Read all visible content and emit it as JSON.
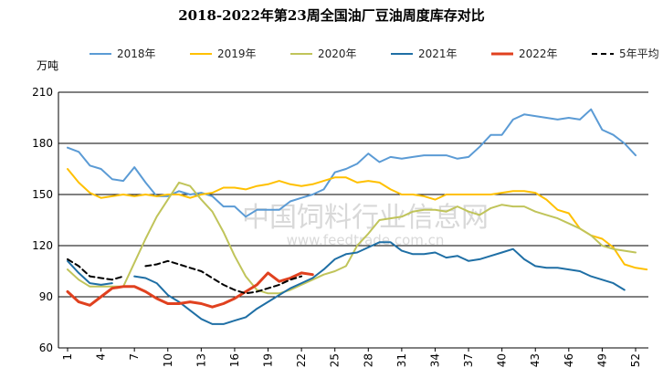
{
  "chart_data": {
    "type": "line",
    "title": "2018-2022年第23周全国油厂豆油周度库存对比",
    "ylabel": "万吨",
    "xlabel": "",
    "ylim": [
      60,
      210
    ],
    "yticks": [
      60,
      90,
      120,
      150,
      180,
      210
    ],
    "xlim": [
      1,
      52
    ],
    "xticks": [
      1,
      4,
      7,
      10,
      13,
      16,
      19,
      22,
      25,
      28,
      31,
      34,
      37,
      40,
      43,
      46,
      49,
      52
    ],
    "grid": "horizontal",
    "legend_position": "top",
    "series": [
      {
        "name": "2018年",
        "color": "#5b9bd5",
        "dash": "",
        "width": 2,
        "values": [
          177.5,
          175,
          167,
          165,
          159,
          158,
          166,
          157,
          149,
          149,
          152,
          150,
          151,
          149,
          143,
          143,
          137,
          141,
          141,
          141,
          146,
          148,
          150,
          153,
          163,
          165,
          168,
          174,
          169,
          172,
          171,
          172,
          173,
          173,
          173,
          171,
          172,
          178,
          185,
          185,
          194,
          197,
          196,
          195,
          194,
          195,
          194,
          200,
          188,
          185,
          180,
          173
        ]
      },
      {
        "name": "2019年",
        "color": "#ffc000",
        "dash": "",
        "width": 2,
        "values": [
          165,
          157,
          151,
          148,
          149,
          150,
          149,
          150,
          149,
          150,
          150,
          148,
          150,
          151,
          154,
          154,
          153,
          155,
          156,
          158,
          156,
          155,
          156,
          158,
          160,
          160,
          157,
          158,
          157,
          153,
          150,
          150,
          149,
          147,
          150,
          150,
          150,
          150,
          150,
          151,
          152,
          152,
          151,
          147,
          141,
          139,
          130,
          126,
          124,
          119,
          109,
          107,
          106
        ]
      },
      {
        "name": "2020年",
        "color": "#c0c45a",
        "dash": "",
        "width": 2,
        "values": [
          106,
          100,
          96,
          96,
          96,
          96,
          110,
          124,
          137,
          147,
          157,
          155,
          147,
          140,
          128,
          114,
          102,
          94,
          92,
          92,
          94,
          97,
          100,
          103,
          105,
          108,
          120,
          127,
          135,
          136,
          137,
          140,
          141,
          141,
          140,
          143,
          140,
          138,
          142,
          144,
          143,
          143,
          140,
          138,
          136,
          133,
          130,
          126,
          120,
          118,
          117,
          116
        ]
      },
      {
        "name": "2021年",
        "color": "#1f6fa5",
        "dash": "",
        "width": 2,
        "values": [
          111,
          104,
          98,
          97,
          98,
          null,
          102,
          101,
          98,
          91,
          87,
          82,
          77,
          74,
          74,
          76,
          78,
          83,
          87,
          91,
          95,
          98,
          101,
          106,
          112,
          115,
          116,
          119,
          122,
          122,
          117,
          115,
          115,
          116,
          113,
          114,
          111,
          112,
          114,
          116,
          118,
          112,
          108,
          107,
          107,
          106,
          105,
          102,
          100,
          98,
          94
        ]
      },
      {
        "name": "2022年",
        "color": "#e0411f",
        "dash": "",
        "width": 3,
        "values": [
          93,
          87,
          85,
          90,
          95,
          96,
          96,
          93,
          89,
          86,
          86,
          87,
          86,
          84,
          86,
          89,
          93,
          97,
          104,
          99,
          101,
          104,
          103
        ]
      },
      {
        "name": "5年平均",
        "color": "#000000",
        "dash": "6,4",
        "width": 2,
        "values": [
          112,
          108,
          102,
          101,
          100,
          102,
          null,
          108,
          109,
          111,
          109,
          107,
          105,
          101,
          97,
          94,
          92,
          93,
          95,
          97,
          100,
          102
        ]
      }
    ]
  },
  "watermark": {
    "text": "中国饲料行业信息网",
    "url": "www.feedtrade.com.cn"
  }
}
